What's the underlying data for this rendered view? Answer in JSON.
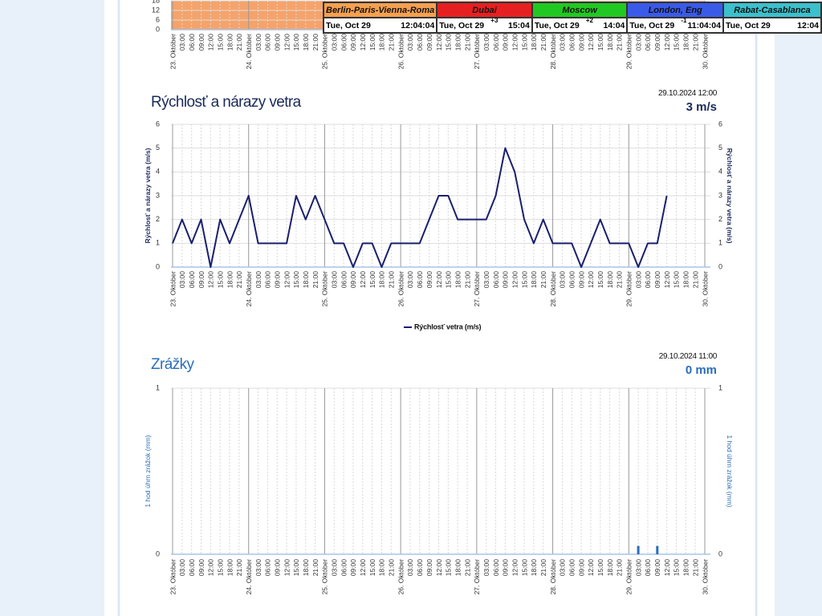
{
  "world_clock": [
    {
      "city": "Berlin-Paris-Vienna-Roma",
      "color": "#f5a050",
      "date": "Tue, Oct 29",
      "time": "12:04:04"
    },
    {
      "city": "Dubai",
      "color": "#e62020",
      "date": "Tue, Oct 29",
      "offset": "+3",
      "time": "15:04"
    },
    {
      "city": "Moscow",
      "color": "#22c822",
      "date": "Tue, Oct 29",
      "offset": "+2",
      "time": "14:04"
    },
    {
      "city": "London, Eng",
      "color": "#3a5ae8",
      "date": "Tue, Oct 29",
      "offset": "-1",
      "time": "11:04:04"
    },
    {
      "city": "Rabat-Casablanca",
      "color": "#3cc0cc",
      "date": "Tue, Oct 29",
      "time": "12:04"
    }
  ],
  "chart_data": [
    {
      "type": "area",
      "categories": [
        "23. Október",
        "03:00",
        "06:00",
        "09:00",
        "12:00",
        "15:00",
        "18:00",
        "21:00",
        "24. Október",
        "03:00",
        "06:00",
        "09:00",
        "12:00",
        "15:00",
        "18:00",
        "21:00",
        "25. Október",
        "03:00",
        "06:00",
        "09:00",
        "12:00",
        "15:00",
        "18:00",
        "21:00",
        "26. Október",
        "03:00",
        "06:00",
        "09:00",
        "12:00",
        "15:00",
        "18:00",
        "21:00",
        "27. Október",
        "03:00",
        "06:00",
        "09:00",
        "12:00",
        "15:00",
        "18:00",
        "21:00",
        "28. Október",
        "03:00",
        "06:00",
        "09:00",
        "12:00",
        "15:00",
        "18:00",
        "21:00",
        "29. Október",
        "03:00",
        "06:00",
        "09:00",
        "12:00",
        "15:00",
        "18:00",
        "21:00",
        "30. Október"
      ],
      "values": [
        18,
        18,
        18,
        18,
        18,
        18,
        18,
        18,
        18,
        18,
        18,
        18,
        18,
        18,
        18,
        18,
        18,
        18,
        18,
        18,
        18,
        18,
        18,
        18,
        18,
        18,
        18,
        18,
        18,
        18,
        18,
        18,
        18,
        18,
        18,
        18,
        18,
        18,
        18,
        18,
        18,
        18,
        18,
        18,
        18,
        18,
        18,
        18,
        18,
        18,
        18,
        18,
        18,
        18,
        18,
        18,
        18
      ],
      "color": "#f5a36a",
      "ylim": [
        0,
        18
      ],
      "yticks": [
        0,
        6,
        12,
        18
      ],
      "grid": true
    },
    {
      "type": "line",
      "title": "Rýchlosť a nárazy vetra",
      "timestamp": "29.10.2024 12:00",
      "current": "3 m/s",
      "ylabel": "Rýchlosť a nárazy vetra (m/s)",
      "categories": [
        "23. Október",
        "03:00",
        "06:00",
        "09:00",
        "12:00",
        "15:00",
        "18:00",
        "21:00",
        "24. Október",
        "03:00",
        "06:00",
        "09:00",
        "12:00",
        "15:00",
        "18:00",
        "21:00",
        "25. Október",
        "03:00",
        "06:00",
        "09:00",
        "12:00",
        "15:00",
        "18:00",
        "21:00",
        "26. Október",
        "03:00",
        "06:00",
        "09:00",
        "12:00",
        "15:00",
        "18:00",
        "21:00",
        "27. Október",
        "03:00",
        "06:00",
        "09:00",
        "12:00",
        "15:00",
        "18:00",
        "21:00",
        "28. Október",
        "03:00",
        "06:00",
        "09:00",
        "12:00",
        "15:00",
        "18:00",
        "21:00",
        "29. Október",
        "03:00",
        "06:00",
        "09:00",
        "12:00",
        "15:00",
        "18:00",
        "21:00",
        "30. Október"
      ],
      "series": [
        {
          "name": "Rýchlosť vetra (m/s)",
          "color": "#1a1f6e",
          "values": [
            1,
            2,
            1,
            2,
            0,
            2,
            1,
            2,
            3,
            1,
            1,
            1,
            1,
            3,
            2,
            3,
            2,
            1,
            1,
            0,
            1,
            1,
            0,
            1,
            1,
            1,
            1,
            2,
            3,
            3,
            2,
            2,
            2,
            2,
            3,
            5,
            4,
            2,
            1,
            2,
            1,
            1,
            1,
            0,
            1,
            2,
            1,
            1,
            1,
            0,
            1,
            1,
            3,
            null,
            null,
            null,
            null
          ]
        }
      ],
      "ylim": [
        0,
        6
      ],
      "yticks": [
        0,
        1,
        2,
        3,
        4,
        5,
        6
      ],
      "grid": true,
      "legend": "bottom"
    },
    {
      "type": "bar",
      "title": "Zrážky",
      "timestamp": "29.10.2024 11:00",
      "current": "0 mm",
      "ylabel": "1 hod úhrn zrážok (mm)",
      "categories": [
        "23. Október",
        "03:00",
        "06:00",
        "09:00",
        "12:00",
        "15:00",
        "18:00",
        "21:00",
        "24. Október",
        "03:00",
        "06:00",
        "09:00",
        "12:00",
        "15:00",
        "18:00",
        "21:00",
        "25. Október",
        "03:00",
        "06:00",
        "09:00",
        "12:00",
        "15:00",
        "18:00",
        "21:00",
        "26. Október",
        "03:00",
        "06:00",
        "09:00",
        "12:00",
        "15:00",
        "18:00",
        "21:00",
        "27. Október",
        "03:00",
        "06:00",
        "09:00",
        "12:00",
        "15:00",
        "18:00",
        "21:00",
        "28. Október",
        "03:00",
        "06:00",
        "09:00",
        "12:00",
        "15:00",
        "18:00",
        "21:00",
        "29. Október",
        "03:00",
        "06:00",
        "09:00",
        "12:00",
        "15:00",
        "18:00",
        "21:00",
        "30. Október"
      ],
      "values": [
        0,
        0,
        0,
        0,
        0,
        0,
        0,
        0,
        0,
        0,
        0,
        0,
        0,
        0,
        0,
        0,
        0,
        0,
        0,
        0,
        0,
        0,
        0,
        0,
        0,
        0,
        0,
        0,
        0,
        0,
        0,
        0,
        0,
        0,
        0,
        0,
        0,
        0,
        0,
        0,
        0,
        0,
        0,
        0,
        0,
        0,
        0,
        0,
        0,
        0.05,
        0,
        0.05,
        null,
        null,
        null,
        null,
        null
      ],
      "color": "#2a6ebb",
      "ylim": [
        0,
        1
      ],
      "yticks": [
        0,
        1
      ],
      "grid": true
    }
  ]
}
